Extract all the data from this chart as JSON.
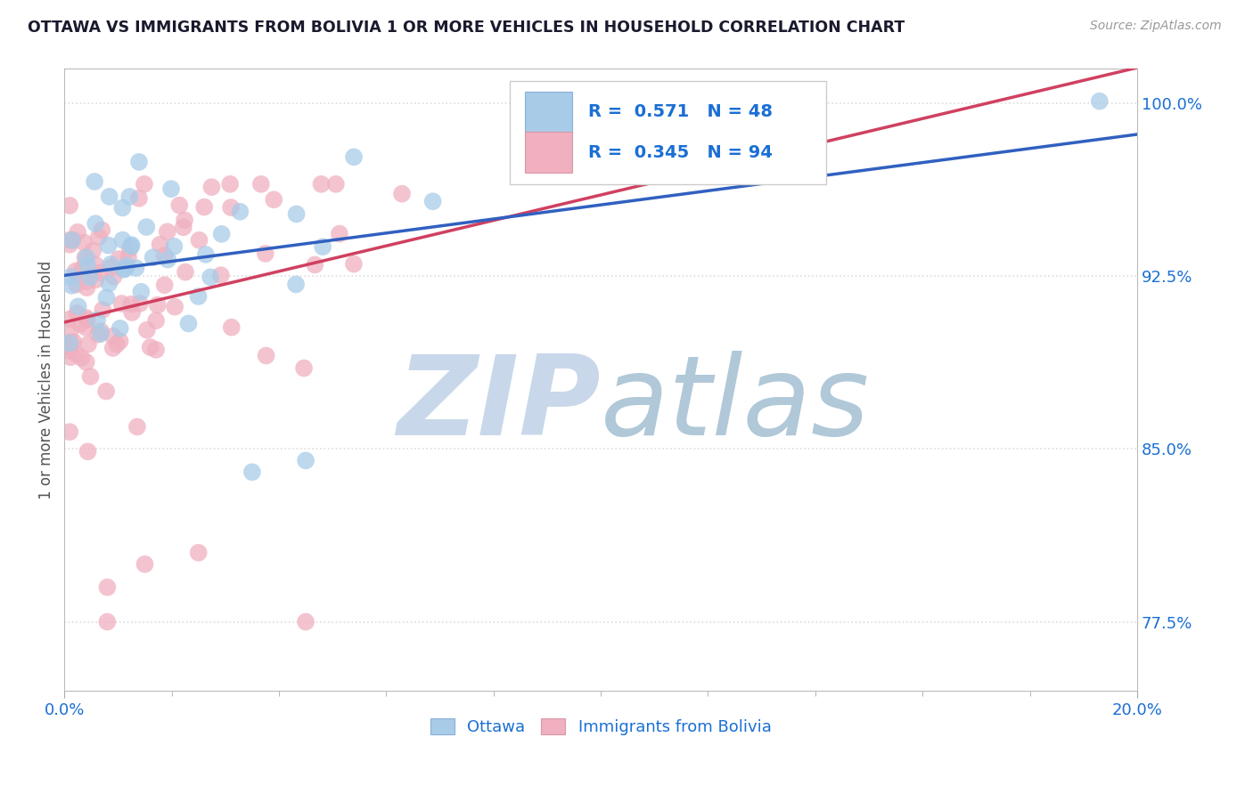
{
  "title": "OTTAWA VS IMMIGRANTS FROM BOLIVIA 1 OR MORE VEHICLES IN HOUSEHOLD CORRELATION CHART",
  "source_text": "Source: ZipAtlas.com",
  "ylabel": "1 or more Vehicles in Household",
  "xlim": [
    0.0,
    0.2
  ],
  "ylim": [
    0.745,
    1.015
  ],
  "yticks": [
    0.775,
    0.85,
    0.925,
    1.0
  ],
  "ytick_labels": [
    "77.5%",
    "85.0%",
    "92.5%",
    "100.0%"
  ],
  "xtick_labels": [
    "0.0%",
    "20.0%"
  ],
  "xticks": [
    0.0,
    0.2
  ],
  "legend_r_ottawa": "0.571",
  "legend_n_ottawa": "48",
  "legend_r_bolivia": "0.345",
  "legend_n_bolivia": "94",
  "ottawa_color": "#a8cce8",
  "bolivia_color": "#f0b0c0",
  "ottawa_line_color": "#3060c0",
  "bolivia_line_color": "#d04060",
  "watermark_zip": "ZIP",
  "watermark_atlas": "atlas",
  "watermark_color_zip": "#c8d8ea",
  "watermark_color_atlas": "#b0c8d8",
  "background_color": "#ffffff",
  "grid_color": "#dddddd",
  "title_color": "#1a1a2e",
  "label_color": "#1a6fd4",
  "ottawa_seed": 7,
  "bolivia_seed": 13
}
